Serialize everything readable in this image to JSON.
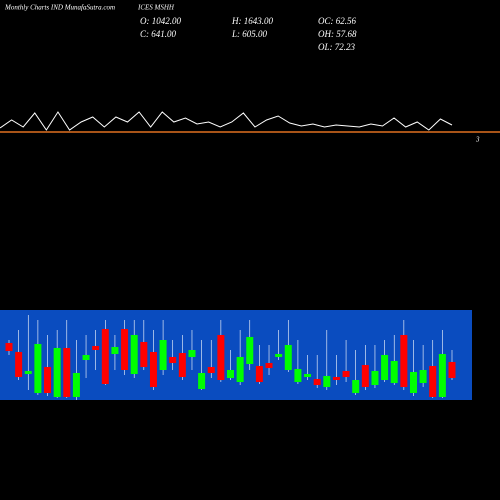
{
  "header": {
    "site": "Monthly Charts IND  MunafaSutra.com",
    "symbol": "ICES MSHH",
    "stats": [
      "O: 1042.00",
      "H: 1643.00",
      "OC: 62.56",
      "C: 641.00",
      "L: 605.00",
      "OH: 57.68",
      "OL: 72.23"
    ]
  },
  "chart_data": [
    {
      "type": "line",
      "color": "#ffffff",
      "ylim": [
        0,
        140
      ],
      "values": [
        12,
        20,
        13,
        27,
        10,
        28,
        10,
        18,
        23,
        13,
        23,
        18,
        28,
        13,
        28,
        18,
        22,
        16,
        18,
        13,
        18,
        27,
        13,
        20,
        24,
        17,
        14,
        16,
        13,
        15,
        14,
        13,
        16,
        14,
        22,
        13,
        18,
        10,
        21,
        15
      ],
      "reference": {
        "value": 8,
        "color": "#e07020",
        "label": "3"
      }
    },
    {
      "type": "candlestick",
      "ylim": [
        0,
        90
      ],
      "background": "#0a4cbf",
      "up_color": "#00ff00",
      "down_color": "#ff0000",
      "open": [
        57,
        48,
        26,
        7,
        33,
        3,
        52,
        3,
        40,
        54,
        71,
        46,
        71,
        26,
        58,
        48,
        30,
        43,
        47,
        43,
        11,
        33,
        65,
        22,
        18,
        36,
        34,
        37,
        43,
        30,
        18,
        23,
        21,
        13,
        23,
        29,
        7,
        35,
        15,
        20,
        17,
        65,
        7,
        17,
        34,
        3,
        38
      ],
      "high": [
        60,
        70,
        85,
        80,
        65,
        70,
        80,
        60,
        65,
        70,
        80,
        65,
        80,
        80,
        80,
        70,
        80,
        60,
        65,
        70,
        60,
        60,
        80,
        50,
        70,
        80,
        55,
        55,
        70,
        80,
        60,
        45,
        45,
        70,
        45,
        60,
        50,
        55,
        55,
        60,
        65,
        80,
        60,
        55,
        60,
        70,
        50
      ],
      "low": [
        45,
        20,
        10,
        5,
        4,
        2,
        2,
        0,
        22,
        30,
        15,
        30,
        25,
        22,
        30,
        10,
        25,
        30,
        20,
        30,
        10,
        22,
        18,
        20,
        15,
        30,
        16,
        25,
        40,
        28,
        16,
        20,
        12,
        10,
        15,
        18,
        5,
        10,
        12,
        18,
        15,
        10,
        4,
        13,
        2,
        2,
        20
      ],
      "close": [
        49,
        23,
        29,
        56,
        7,
        52,
        3,
        27,
        45,
        50,
        16,
        53,
        30,
        65,
        33,
        13,
        60,
        37,
        23,
        50,
        27,
        27,
        20,
        30,
        43,
        63,
        18,
        32,
        46,
        55,
        31,
        26,
        15,
        24,
        20,
        23,
        20,
        13,
        29,
        45,
        39,
        13,
        28,
        30,
        3,
        46,
        22
      ]
    }
  ]
}
